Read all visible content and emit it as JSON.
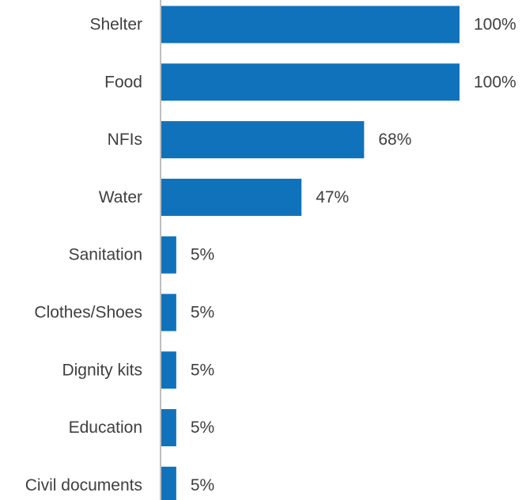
{
  "chart_data": {
    "type": "bar",
    "orientation": "horizontal",
    "categories": [
      "Shelter",
      "Food",
      "NFIs",
      "Water",
      "Sanitation",
      "Clothes/Shoes",
      "Dignity kits",
      "Education",
      "Civil documents"
    ],
    "values": [
      100,
      100,
      68,
      47,
      5,
      5,
      5,
      5,
      5
    ],
    "value_labels": [
      "100%",
      "100%",
      "68%",
      "47%",
      "5%",
      "5%",
      "5%",
      "5%",
      "5%"
    ],
    "unit": "%",
    "xlim": [
      0,
      100
    ],
    "title": "",
    "xlabel": "",
    "ylabel": "",
    "grid": false,
    "legend": "none",
    "bar_color": "#1072BA",
    "axis_color": "#BFBFBF",
    "text_color": "#3F3F3F"
  }
}
